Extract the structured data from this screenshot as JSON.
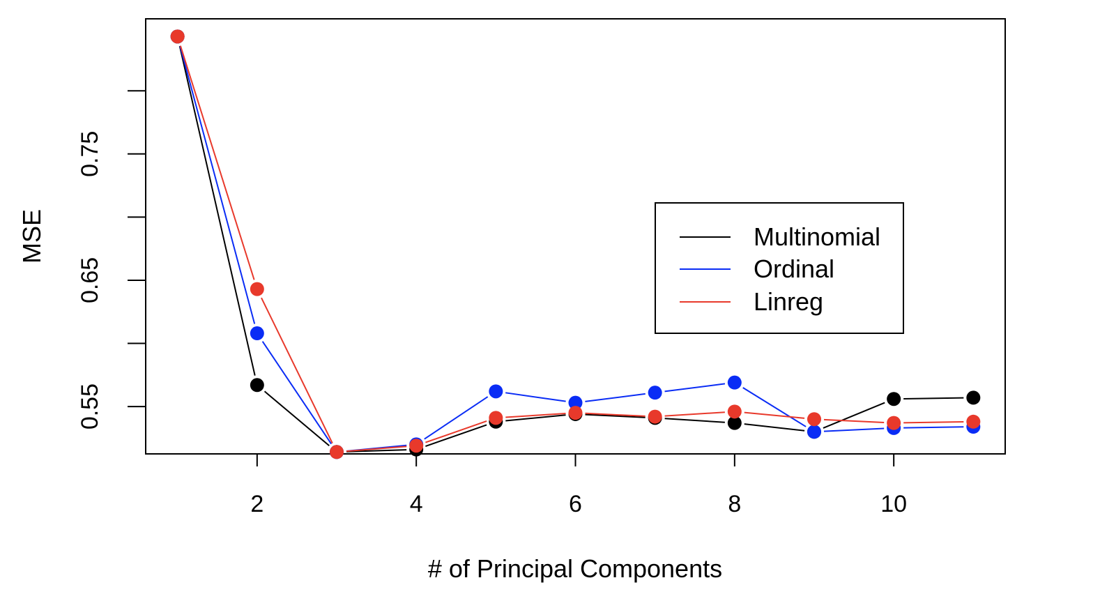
{
  "chart_data": {
    "type": "line",
    "title": "",
    "xlabel": "# of Principal Components",
    "ylabel": "MSE",
    "x": [
      1,
      2,
      3,
      4,
      5,
      6,
      7,
      8,
      9,
      10,
      11
    ],
    "xlim": [
      0.6,
      11.4
    ],
    "ylim": [
      0.5125,
      0.857
    ],
    "x_ticks": [
      2,
      4,
      6,
      8,
      10
    ],
    "x_tick_labels": [
      "2",
      "4",
      "6",
      "8",
      "10"
    ],
    "y_ticks": [
      0.55,
      0.6,
      0.65,
      0.7,
      0.75,
      0.8
    ],
    "y_tick_labels": [
      "0.55",
      "",
      "0.65",
      "",
      "0.75",
      ""
    ],
    "grid": false,
    "legend_position": "center-right",
    "series": [
      {
        "name": "Multinomial",
        "color": "#000000",
        "values": [
          0.843,
          0.567,
          0.514,
          0.516,
          0.538,
          0.544,
          0.541,
          0.537,
          0.53,
          0.556,
          0.557
        ]
      },
      {
        "name": "Ordinal",
        "color": "#0a2cf5",
        "values": [
          0.843,
          0.608,
          0.514,
          0.52,
          0.562,
          0.553,
          0.561,
          0.569,
          0.53,
          0.533,
          0.534
        ]
      },
      {
        "name": "Linreg",
        "color": "#e8392b",
        "values": [
          0.843,
          0.643,
          0.514,
          0.519,
          0.541,
          0.545,
          0.542,
          0.546,
          0.54,
          0.537,
          0.538
        ]
      }
    ]
  }
}
